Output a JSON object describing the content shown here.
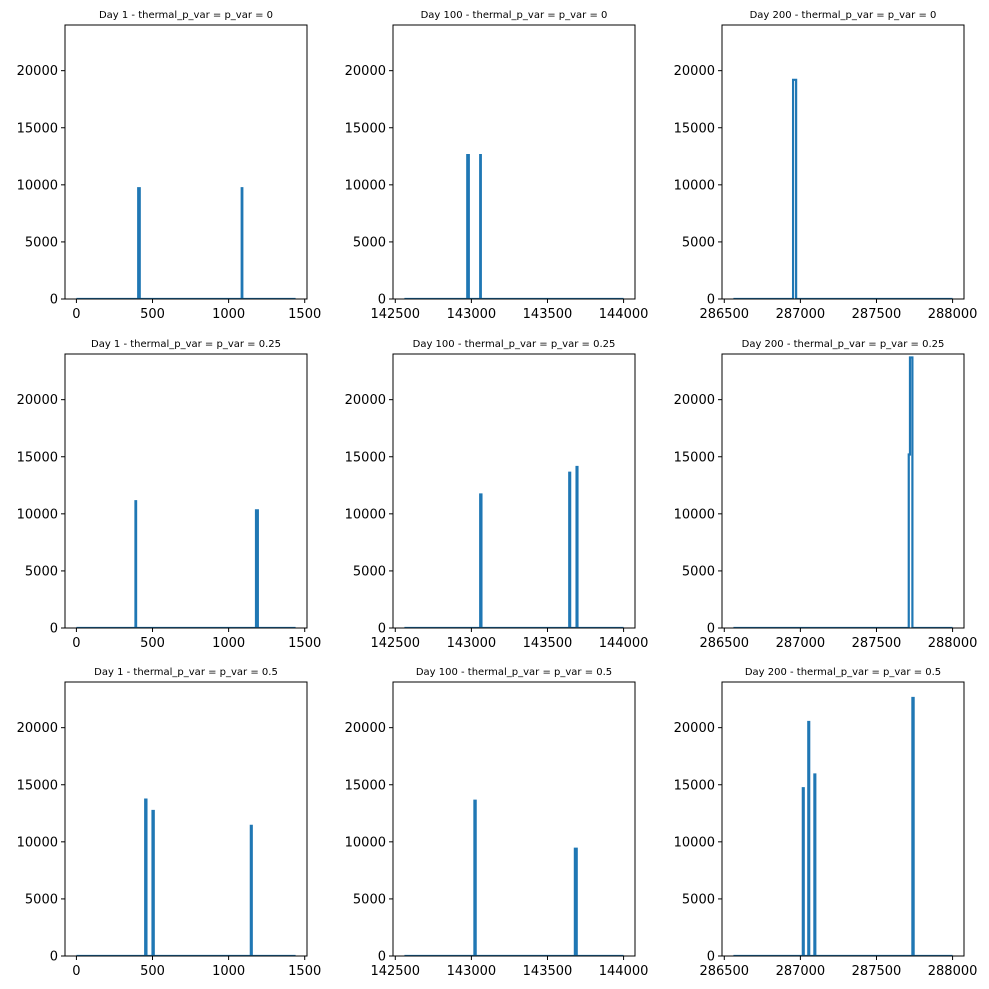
{
  "figure": {
    "background": "#ffffff"
  },
  "style": {
    "line_color": "#1f77b4"
  },
  "chart_data": [
    {
      "type": "line",
      "title": "Day 1 - thermal_p_var = p_var = 0",
      "xlim": [
        -75,
        1515
      ],
      "ylim": [
        0,
        24000
      ],
      "xticks": [
        0,
        500,
        1000,
        1500
      ],
      "xtick_labels": [
        "0",
        "500",
        "1000",
        "1500"
      ],
      "yticks": [
        0,
        5000,
        10000,
        15000,
        20000
      ],
      "ytick_labels": [
        "0",
        "5000",
        "10000",
        "15000",
        "20000"
      ],
      "series": [
        {
          "x": [
            0,
            406,
            406,
            416,
            416,
            1086,
            1086,
            1090,
            1090,
            1440
          ],
          "y": [
            0,
            0,
            9700,
            9700,
            0,
            0,
            9700,
            9700,
            0,
            0
          ]
        }
      ]
    },
    {
      "type": "line",
      "title": "Day 100 - thermal_p_var = p_var = 0",
      "xlim": [
        142485,
        144075
      ],
      "ylim": [
        0,
        24000
      ],
      "xticks": [
        142500,
        143000,
        143500,
        144000
      ],
      "xtick_labels": [
        "142500",
        "143000",
        "143500",
        "144000"
      ],
      "yticks": [
        0,
        5000,
        10000,
        15000,
        20000
      ],
      "ytick_labels": [
        "0",
        "5000",
        "10000",
        "15000",
        "20000"
      ],
      "series": [
        {
          "x": [
            142560,
            142973,
            142973,
            142983,
            142983,
            143058,
            143058,
            143062,
            143062,
            144000
          ],
          "y": [
            0,
            0,
            12600,
            12600,
            0,
            0,
            12600,
            12600,
            0,
            0
          ]
        }
      ]
    },
    {
      "type": "line",
      "title": "Day 200 - thermal_p_var = p_var = 0",
      "xlim": [
        286485,
        288075
      ],
      "ylim": [
        0,
        24000
      ],
      "xticks": [
        286500,
        287000,
        287500,
        288000
      ],
      "xtick_labels": [
        "286500",
        "287000",
        "287500",
        "288000"
      ],
      "yticks": [
        0,
        5000,
        10000,
        15000,
        20000
      ],
      "ytick_labels": [
        "0",
        "5000",
        "10000",
        "15000",
        "20000"
      ],
      "series": [
        {
          "x": [
            286560,
            286952,
            286952,
            286972,
            286972,
            288000
          ],
          "y": [
            0,
            0,
            19200,
            19200,
            0,
            0
          ]
        }
      ]
    },
    {
      "type": "line",
      "title": "Day 1 - thermal_p_var = p_var = 0.25",
      "xlim": [
        -75,
        1515
      ],
      "ylim": [
        0,
        24000
      ],
      "xticks": [
        0,
        500,
        1000,
        1500
      ],
      "xtick_labels": [
        "0",
        "500",
        "1000",
        "1500"
      ],
      "yticks": [
        0,
        5000,
        10000,
        15000,
        20000
      ],
      "ytick_labels": [
        "0",
        "5000",
        "10000",
        "15000",
        "20000"
      ],
      "series": [
        {
          "x": [
            0,
            388,
            388,
            392,
            392,
            1180,
            1180,
            1192,
            1192,
            1440
          ],
          "y": [
            0,
            0,
            11100,
            11100,
            0,
            0,
            10300,
            10300,
            0,
            0
          ]
        }
      ]
    },
    {
      "type": "line",
      "title": "Day 100 - thermal_p_var = p_var = 0.25",
      "xlim": [
        142485,
        144075
      ],
      "ylim": [
        0,
        24000
      ],
      "xticks": [
        142500,
        143000,
        143500,
        144000
      ],
      "xtick_labels": [
        "142500",
        "143000",
        "143500",
        "144000"
      ],
      "yticks": [
        0,
        5000,
        10000,
        15000,
        20000
      ],
      "ytick_labels": [
        "0",
        "5000",
        "10000",
        "15000",
        "20000"
      ],
      "series": [
        {
          "x": [
            142560,
            143058,
            143058,
            143066,
            143066,
            143643,
            143643,
            143649,
            143649,
            143691,
            143691,
            143697,
            143697,
            144000
          ],
          "y": [
            0,
            0,
            11700,
            11700,
            0,
            0,
            13600,
            13600,
            0,
            0,
            14100,
            14100,
            0,
            0
          ]
        }
      ]
    },
    {
      "type": "line",
      "title": "Day 200 - thermal_p_var = p_var = 0.25",
      "xlim": [
        286485,
        288075
      ],
      "ylim": [
        0,
        24000
      ],
      "xticks": [
        286500,
        287000,
        287500,
        288000
      ],
      "xtick_labels": [
        "286500",
        "287000",
        "287500",
        "288000"
      ],
      "yticks": [
        0,
        5000,
        10000,
        15000,
        20000
      ],
      "ytick_labels": [
        "0",
        "5000",
        "10000",
        "15000",
        "20000"
      ],
      "series": [
        {
          "x": [
            286560,
            287712,
            287712,
            287720,
            287720,
            287736,
            287736,
            288000
          ],
          "y": [
            0,
            0,
            15200,
            15200,
            23700,
            23700,
            0,
            0
          ]
        }
      ]
    },
    {
      "type": "line",
      "title": "Day 1 - thermal_p_var = p_var = 0.5",
      "xlim": [
        -75,
        1515
      ],
      "ylim": [
        0,
        24000
      ],
      "xticks": [
        0,
        500,
        1000,
        1500
      ],
      "xtick_labels": [
        "0",
        "500",
        "1000",
        "1500"
      ],
      "yticks": [
        0,
        5000,
        10000,
        15000,
        20000
      ],
      "ytick_labels": [
        "0",
        "5000",
        "10000",
        "15000",
        "20000"
      ],
      "series": [
        {
          "x": [
            0,
            452,
            452,
            460,
            460,
            500,
            500,
            508,
            508,
            1146,
            1146,
            1152,
            1152,
            1440
          ],
          "y": [
            0,
            0,
            13700,
            13700,
            0,
            0,
            12700,
            12700,
            0,
            0,
            11400,
            11400,
            0,
            0
          ]
        }
      ]
    },
    {
      "type": "line",
      "title": "Day 100 - thermal_p_var = p_var = 0.5",
      "xlim": [
        142485,
        144075
      ],
      "ylim": [
        0,
        24000
      ],
      "xticks": [
        142500,
        143000,
        143500,
        144000
      ],
      "xtick_labels": [
        "142500",
        "143000",
        "143500",
        "144000"
      ],
      "yticks": [
        0,
        5000,
        10000,
        15000,
        20000
      ],
      "ytick_labels": [
        "0",
        "5000",
        "10000",
        "15000",
        "20000"
      ],
      "series": [
        {
          "x": [
            142560,
            143020,
            143020,
            143028,
            143028,
            143680,
            143680,
            143692,
            143692,
            144000
          ],
          "y": [
            0,
            0,
            13600,
            13600,
            0,
            0,
            9400,
            9400,
            0,
            0
          ]
        }
      ]
    },
    {
      "type": "line",
      "title": "Day 200 - thermal_p_var = p_var = 0.5",
      "xlim": [
        286485,
        288075
      ],
      "ylim": [
        0,
        24000
      ],
      "xticks": [
        286500,
        287000,
        287500,
        288000
      ],
      "xtick_labels": [
        "286500",
        "287000",
        "287500",
        "288000"
      ],
      "yticks": [
        0,
        5000,
        10000,
        15000,
        20000
      ],
      "ytick_labels": [
        "0",
        "5000",
        "10000",
        "15000",
        "20000"
      ],
      "series": [
        {
          "x": [
            286560,
            287016,
            287016,
            287022,
            287022,
            287052,
            287052,
            287058,
            287058,
            287092,
            287092,
            287098,
            287098,
            287736,
            287736,
            287744,
            287744,
            288000
          ],
          "y": [
            0,
            0,
            14700,
            14700,
            0,
            0,
            20500,
            20500,
            0,
            0,
            15900,
            15900,
            0,
            0,
            22600,
            22600,
            0,
            0
          ]
        }
      ]
    }
  ]
}
